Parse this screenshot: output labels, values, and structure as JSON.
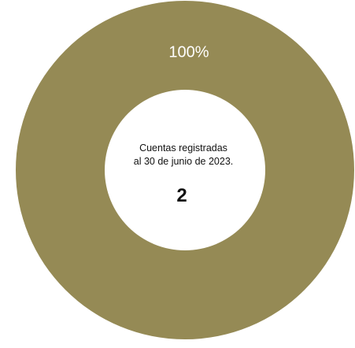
{
  "chart_data": {
    "type": "pie",
    "style": "donut",
    "categories": [
      ""
    ],
    "values": [
      100
    ],
    "slice_labels": [
      "100%"
    ],
    "colors": [
      "#958A55"
    ],
    "center": {
      "line1": "Cuentas registradas",
      "line2": "al 30 de junio de 2023.",
      "total": "2"
    },
    "legend": "none"
  }
}
